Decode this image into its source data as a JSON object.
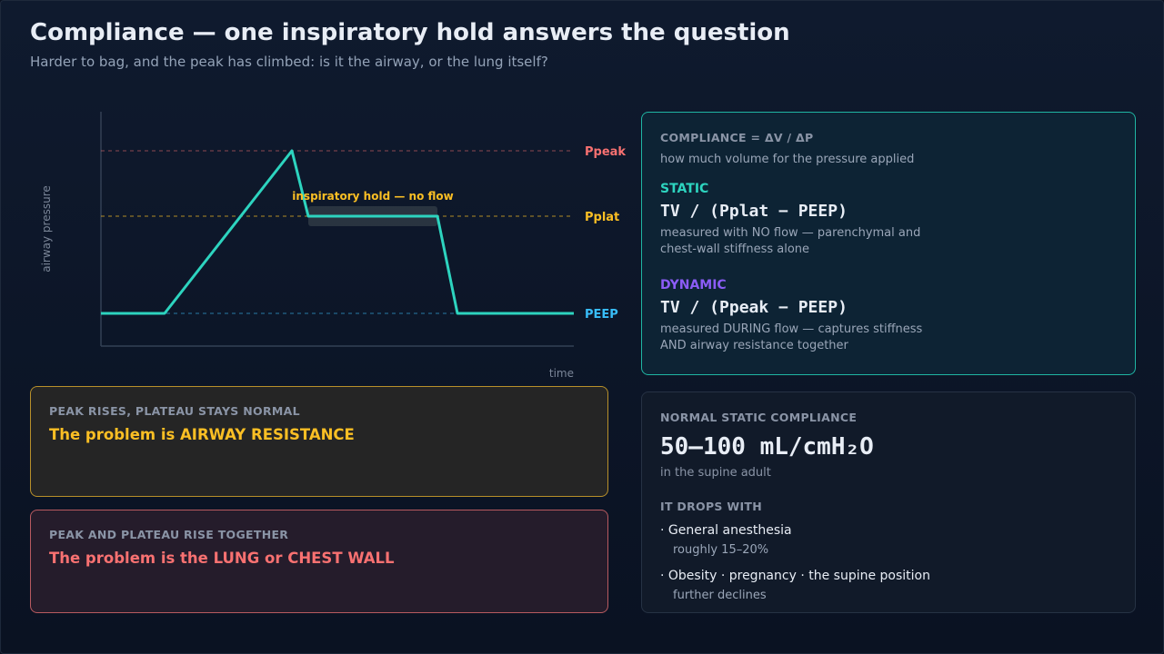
{
  "header": {
    "title": "Compliance — one inspiratory hold answers the question",
    "subtitle": "Harder to bag, and the peak has climbed: is it the airway, or the lung itself?"
  },
  "waveform": {
    "y_label": "airway pressure",
    "x_label": "time",
    "hold_label": "inspiratory hold — no flow",
    "levels": {
      "peak": "Ppeak",
      "plat": "Pplat",
      "peep": "PEEP"
    }
  },
  "airway_card": {
    "caption": "PEAK RISES, PLATEAU STAYS NORMAL",
    "headline": "The problem is AIRWAY RESISTANCE"
  },
  "lung_card": {
    "caption": "PEAK AND PLATEAU RISE TOGETHER",
    "headline": "The problem is the LUNG or CHEST WALL"
  },
  "compliance_card": {
    "caption": "COMPLIANCE = ΔV / ΔP",
    "desc": "how much volume for the pressure applied",
    "static": {
      "label": "STATIC",
      "formula": "TV / (Pplat − PEEP)",
      "desc_line1": "measured with NO flow — parenchymal and",
      "desc_line2": "chest-wall stiffness alone"
    },
    "dynamic": {
      "label": "DYNAMIC",
      "formula": "TV / (Ppeak − PEEP)",
      "desc_line1": "measured DURING flow — captures stiffness",
      "desc_line2": "AND airway resistance together"
    }
  },
  "normal_card": {
    "caption": "NORMAL STATIC COMPLIANCE",
    "value": "50–100 mL/cmH₂O",
    "note": "in the supine adult",
    "drops_caption": "IT DROPS WITH",
    "items": [
      {
        "label": "· General anesthesia",
        "detail": "roughly 15–20%"
      },
      {
        "label": "· Obesity · pregnancy · the supine position",
        "detail": "further declines"
      }
    ]
  },
  "colors": {
    "trace": "#2dd4bf",
    "peak": "#f87171",
    "plat": "#fbbf24",
    "peep": "#38bdf8",
    "dynamic": "#8b5cf6"
  }
}
